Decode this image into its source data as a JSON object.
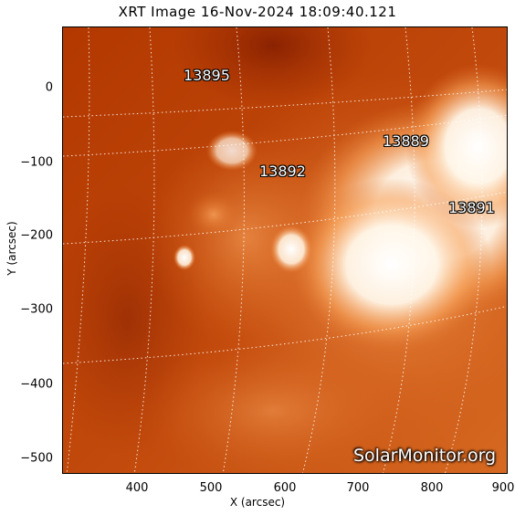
{
  "title": "XRT Image 16-Nov-2024 18:09:40.121",
  "axes": {
    "xlabel": "X (arcsec)",
    "ylabel": "Y (arcsec)",
    "xticks": [
      "400",
      "500",
      "600",
      "700",
      "800",
      "900"
    ],
    "yticks": [
      "0",
      "−100",
      "−200",
      "−300",
      "−400",
      "−500"
    ]
  },
  "active_regions": [
    "13895",
    "13889",
    "13892",
    "13891"
  ],
  "watermark": "SolarMonitor.org",
  "colors": {
    "dark_background": "#b83b00",
    "mid_orange": "#e0762e",
    "bright": "#ffffff",
    "grid": "#ffffff"
  }
}
